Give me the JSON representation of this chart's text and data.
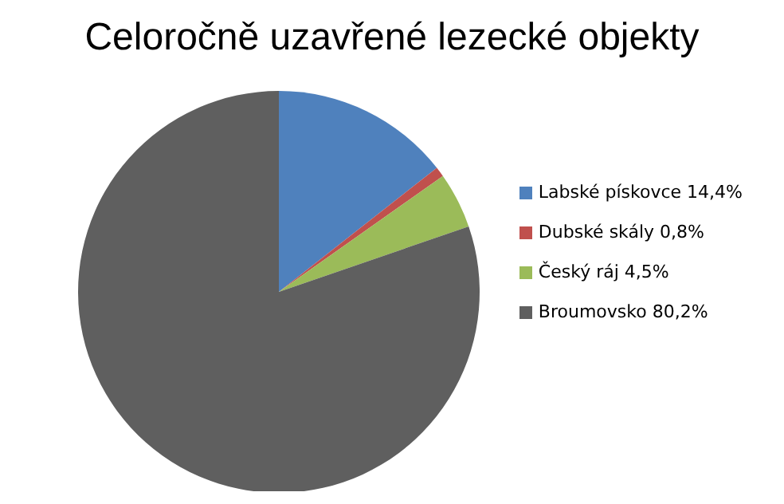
{
  "chart_data": {
    "type": "pie",
    "title": "Celoročně uzavřené lezecké objekty",
    "categories": [
      "Labské pískovce 14,4%",
      "Dubské skály 0,8%",
      "Český ráj 4,5%",
      "Broumovsko 80,2%"
    ],
    "values": [
      14.4,
      0.8,
      4.5,
      80.2
    ],
    "colors": [
      "#4f81bd",
      "#c0504d",
      "#9bbb59",
      "#5f5f5f"
    ],
    "legend": "right"
  }
}
